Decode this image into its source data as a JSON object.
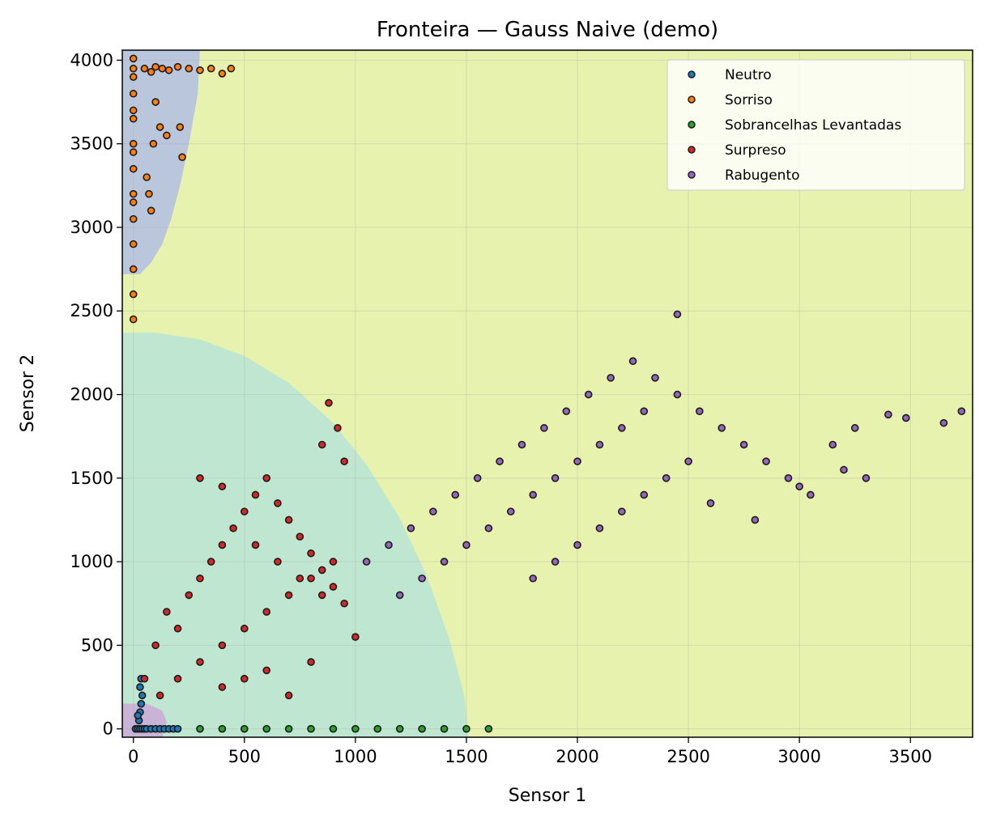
{
  "chart_data": {
    "type": "scatter",
    "title": "Fronteira — Gauss Naive (demo)",
    "xlabel": "Sensor 1",
    "ylabel": "Sensor 2",
    "xlim": [
      -50,
      3780
    ],
    "ylim": [
      -50,
      4060
    ],
    "xticks": [
      0,
      500,
      1000,
      1500,
      2000,
      2500,
      3000,
      3500
    ],
    "yticks": [
      0,
      500,
      1000,
      1500,
      2000,
      2500,
      3000,
      3500,
      4000
    ],
    "grid": true,
    "legend_position": "top-right",
    "decision_regions": [
      {
        "class": "Rabugento",
        "color": "#e6f2ad"
      },
      {
        "class": "Surpreso",
        "color": "#bfe6d0"
      },
      {
        "class": "Sorriso",
        "color": "#b9c6dc"
      },
      {
        "class": "Neutro",
        "color": "#c9b3d6"
      }
    ],
    "series": [
      {
        "name": "Neutro",
        "color": "#1f77b4",
        "x": [
          10,
          20,
          30,
          40,
          50,
          60,
          80,
          100,
          120,
          140,
          160,
          180,
          200,
          25,
          30,
          35,
          40,
          30,
          20,
          35
        ],
        "y": [
          0,
          0,
          0,
          0,
          0,
          0,
          0,
          0,
          0,
          0,
          0,
          0,
          0,
          50,
          100,
          150,
          200,
          250,
          80,
          300
        ]
      },
      {
        "name": "Sorriso",
        "color": "#ff7f0e",
        "x": [
          0,
          0,
          0,
          0,
          0,
          0,
          0,
          0,
          0,
          0,
          0,
          0,
          0,
          0,
          0,
          0,
          50,
          80,
          100,
          130,
          160,
          200,
          250,
          300,
          350,
          400,
          440,
          100,
          120,
          150,
          210,
          220,
          60,
          70,
          80,
          90
        ],
        "y": [
          2450,
          2600,
          2750,
          2900,
          3050,
          3200,
          3350,
          3500,
          3650,
          3800,
          3950,
          4010,
          3900,
          3700,
          3450,
          3150,
          3950,
          3930,
          3960,
          3950,
          3940,
          3960,
          3950,
          3940,
          3950,
          3920,
          3950,
          3750,
          3600,
          3550,
          3600,
          3420,
          3300,
          3200,
          3100,
          3500
        ]
      },
      {
        "name": "Sobrancelhas Levantadas",
        "color": "#2ca02c",
        "x": [
          300,
          400,
          500,
          600,
          700,
          800,
          900,
          1000,
          1100,
          1200,
          1300,
          1400,
          1500,
          1600
        ],
        "y": [
          0,
          0,
          0,
          0,
          0,
          0,
          0,
          0,
          0,
          0,
          0,
          0,
          0,
          0
        ]
      },
      {
        "name": "Surpreso",
        "color": "#d62728",
        "x": [
          50,
          100,
          150,
          200,
          250,
          300,
          350,
          400,
          450,
          500,
          550,
          600,
          650,
          700,
          750,
          800,
          850,
          900,
          950,
          120,
          200,
          300,
          400,
          500,
          600,
          700,
          800,
          900,
          550,
          650,
          750,
          850,
          400,
          500,
          600,
          700,
          800,
          300,
          400,
          880,
          920,
          950,
          850,
          1000
        ],
        "y": [
          300,
          500,
          700,
          600,
          800,
          900,
          1000,
          1100,
          1200,
          1300,
          1400,
          1500,
          1350,
          1250,
          1150,
          1050,
          950,
          850,
          750,
          200,
          300,
          400,
          500,
          600,
          700,
          800,
          900,
          1000,
          1100,
          1000,
          900,
          800,
          250,
          300,
          350,
          200,
          400,
          1500,
          1450,
          1950,
          1800,
          1600,
          1700,
          550
        ]
      },
      {
        "name": "Rabugento",
        "color": "#9467bd",
        "x": [
          1050,
          1150,
          1250,
          1350,
          1450,
          1550,
          1650,
          1750,
          1850,
          1950,
          2050,
          2150,
          2250,
          2350,
          2450,
          2550,
          2650,
          2750,
          2850,
          2950,
          3050,
          3150,
          3250,
          1800,
          1900,
          2000,
          2100,
          2200,
          2300,
          2400,
          2500,
          2450,
          1600,
          1700,
          1800,
          1900,
          2000,
          2100,
          2200,
          2300,
          2600,
          2800,
          3000,
          3200,
          3300,
          3400,
          3480,
          3650,
          3730,
          1200,
          1300,
          1400,
          1500
        ],
        "y": [
          1000,
          1100,
          1200,
          1300,
          1400,
          1500,
          1600,
          1700,
          1800,
          1900,
          2000,
          2100,
          2200,
          2100,
          2000,
          1900,
          1800,
          1700,
          1600,
          1500,
          1400,
          1700,
          1800,
          900,
          1000,
          1100,
          1200,
          1300,
          1400,
          1500,
          1600,
          2480,
          1200,
          1300,
          1400,
          1500,
          1600,
          1700,
          1800,
          1900,
          1350,
          1250,
          1450,
          1550,
          1500,
          1880,
          1860,
          1830,
          1900,
          800,
          900,
          1000,
          1100
        ]
      }
    ]
  }
}
